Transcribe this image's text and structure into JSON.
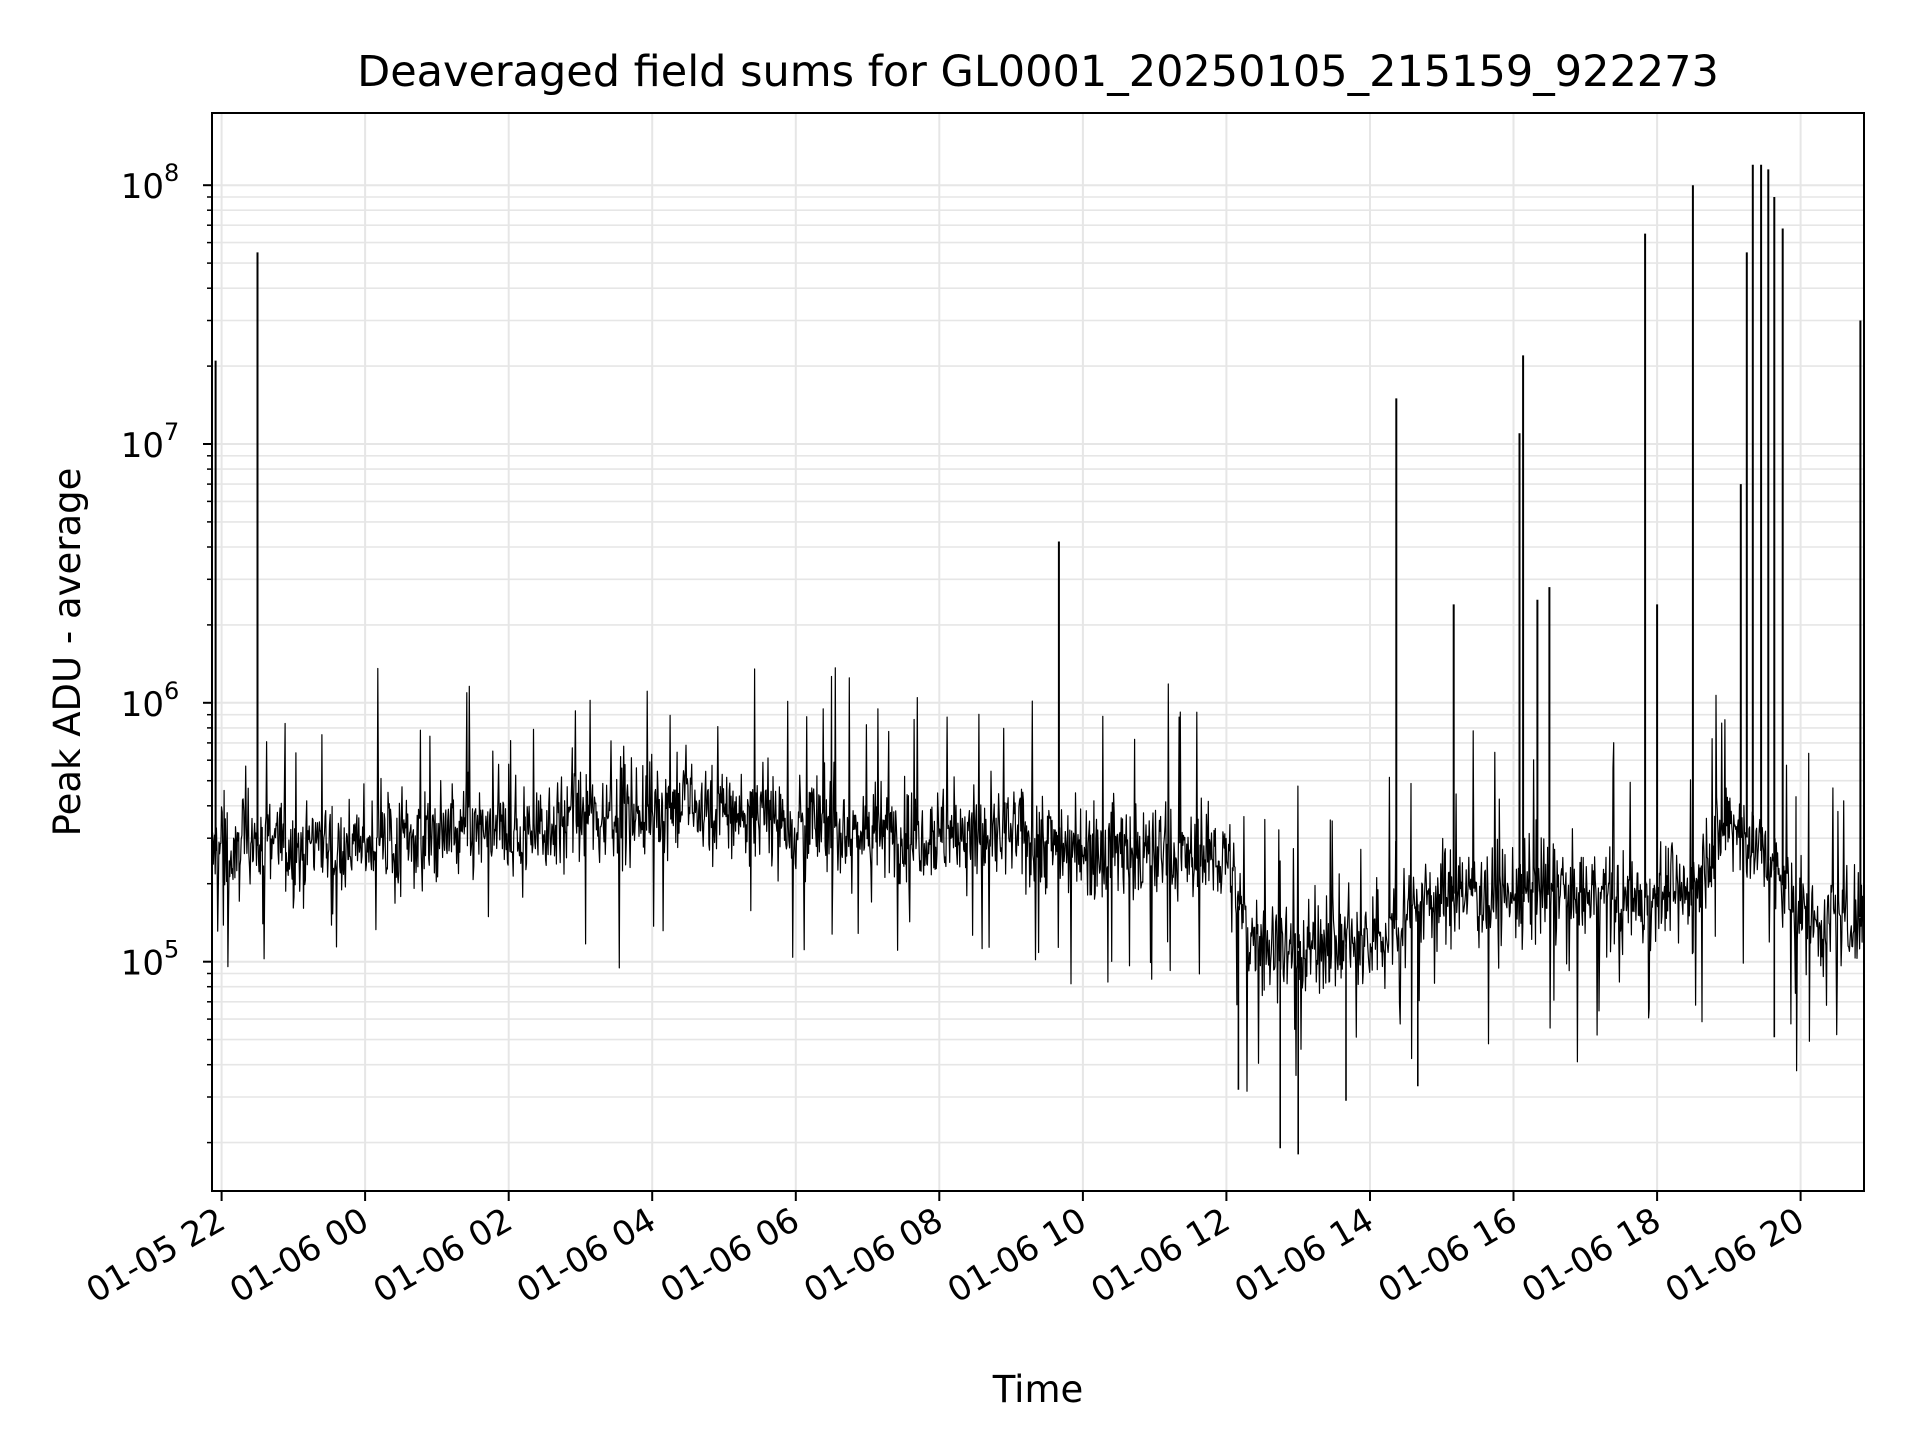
{
  "chart_data": {
    "type": "line",
    "title": "Deaveraged field sums for GL0001_20250105_215159_922273",
    "xlabel": "Time",
    "ylabel": "Peak ADU - average",
    "y_scale": "log",
    "ylim": [
      13000,
      190000000
    ],
    "xlim": [
      "01-05 21:52",
      "01-06 20:53"
    ],
    "grid": {
      "major": true,
      "minor_y": true
    },
    "colors": {
      "line": "#000000",
      "grid": "#e6e6e6",
      "axes": "#000000",
      "background": "#ffffff"
    },
    "x_ticks": [
      {
        "label": "01-05 22",
        "value": "01-05 22:00"
      },
      {
        "label": "01-06 00",
        "value": "01-06 00:00"
      },
      {
        "label": "01-06 02",
        "value": "01-06 02:00"
      },
      {
        "label": "01-06 04",
        "value": "01-06 04:00"
      },
      {
        "label": "01-06 06",
        "value": "01-06 06:00"
      },
      {
        "label": "01-06 08",
        "value": "01-06 08:00"
      },
      {
        "label": "01-06 10",
        "value": "01-06 10:00"
      },
      {
        "label": "01-06 12",
        "value": "01-06 12:00"
      },
      {
        "label": "01-06 14",
        "value": "01-06 14:00"
      },
      {
        "label": "01-06 16",
        "value": "01-06 16:00"
      },
      {
        "label": "01-06 18",
        "value": "01-06 18:00"
      },
      {
        "label": "01-06 20",
        "value": "01-06 20:00"
      }
    ],
    "y_ticks": [
      {
        "base": "10",
        "exp": "5",
        "value": 100000
      },
      {
        "base": "10",
        "exp": "6",
        "value": 1000000
      },
      {
        "base": "10",
        "exp": "7",
        "value": 10000000
      },
      {
        "base": "10",
        "exp": "8",
        "value": 100000000
      }
    ],
    "series": [
      {
        "values": [
          [
            "01-05 21:52",
            250000.0
          ],
          [
            "01-05 22:00",
            300000.0
          ],
          [
            "01-05 22:10",
            220000.0
          ],
          [
            "01-05 22:20",
            350000.0
          ],
          [
            "01-05 22:30",
            280000.0
          ],
          [
            "01-05 22:40",
            320000.0
          ],
          [
            "01-05 23:00",
            260000.0
          ],
          [
            "01-05 23:20",
            310000.0
          ],
          [
            "01-05 23:40",
            270000.0
          ],
          [
            "01-06 00:00",
            290000.0
          ],
          [
            "01-06 00:30",
            300000.0
          ],
          [
            "01-06 01:00",
            310000.0
          ],
          [
            "01-06 01:30",
            320000.0
          ],
          [
            "01-06 02:00",
            300000.0
          ],
          [
            "01-06 02:30",
            340000.0
          ],
          [
            "01-06 03:00",
            360000.0
          ],
          [
            "01-06 03:30",
            380000.0
          ],
          [
            "01-06 04:00",
            390000.0
          ],
          [
            "01-06 04:30",
            400000.0
          ],
          [
            "01-06 05:00",
            380000.0
          ],
          [
            "01-06 05:30",
            360000.0
          ],
          [
            "01-06 06:00",
            350000.0
          ],
          [
            "01-06 06:30",
            330000.0
          ],
          [
            "01-06 07:00",
            320000.0
          ],
          [
            "01-06 07:30",
            310000.0
          ],
          [
            "01-06 08:00",
            320000.0
          ],
          [
            "01-06 08:30",
            300000.0
          ],
          [
            "01-06 09:00",
            310000.0
          ],
          [
            "01-06 09:30",
            290000.0
          ],
          [
            "01-06 10:00",
            280000.0
          ],
          [
            "01-06 10:30",
            270000.0
          ],
          [
            "01-06 11:00",
            260000.0
          ],
          [
            "01-06 11:30",
            250000.0
          ],
          [
            "01-06 12:00",
            260000.0
          ],
          [
            "01-06 12:15",
            130000.0
          ],
          [
            "01-06 12:30",
            120000.0
          ],
          [
            "01-06 13:00",
            110000.0
          ],
          [
            "01-06 13:30",
            120000.0
          ],
          [
            "01-06 14:00",
            110000.0
          ],
          [
            "01-06 14:30",
            160000.0
          ],
          [
            "01-06 15:00",
            180000.0
          ],
          [
            "01-06 15:30",
            190000.0
          ],
          [
            "01-06 16:00",
            180000.0
          ],
          [
            "01-06 16:30",
            190000.0
          ],
          [
            "01-06 17:00",
            180000.0
          ],
          [
            "01-06 17:30",
            170000.0
          ],
          [
            "01-06 18:00",
            180000.0
          ],
          [
            "01-06 18:30",
            190000.0
          ],
          [
            "01-06 19:00",
            350000.0
          ],
          [
            "01-06 19:30",
            260000.0
          ],
          [
            "01-06 20:00",
            150000.0
          ],
          [
            "01-06 20:30",
            140000.0
          ],
          [
            "01-06 20:53",
            150000.0
          ]
        ],
        "spikes": [
          [
            "01-05 21:55",
            21000000.0
          ],
          [
            "01-05 22:30",
            55000000.0
          ],
          [
            "01-06 09:40",
            4200000.0
          ],
          [
            "01-06 14:22",
            15000000.0
          ],
          [
            "01-06 15:10",
            2400000.0
          ],
          [
            "01-06 16:05",
            11000000.0
          ],
          [
            "01-06 16:08",
            22000000.0
          ],
          [
            "01-06 16:20",
            2500000.0
          ],
          [
            "01-06 16:30",
            2800000.0
          ],
          [
            "01-06 17:50",
            65000000.0
          ],
          [
            "01-06 18:00",
            2400000.0
          ],
          [
            "01-06 18:30",
            100000000.0
          ],
          [
            "01-06 19:10",
            7000000.0
          ],
          [
            "01-06 19:15",
            55000000.0
          ],
          [
            "01-06 19:20",
            120000000.0
          ],
          [
            "01-06 19:27",
            120000000.0
          ],
          [
            "01-06 19:33",
            115000000.0
          ],
          [
            "01-06 19:38",
            90000000.0
          ],
          [
            "01-06 19:45",
            68000000.0
          ],
          [
            "01-06 20:50",
            30000000.0
          ]
        ],
        "dips": [
          [
            "01-06 12:10",
            32000.0
          ],
          [
            "01-06 12:45",
            19000.0
          ],
          [
            "01-06 13:00",
            18000.0
          ],
          [
            "01-06 13:40",
            29000.0
          ],
          [
            "01-06 14:40",
            33000.0
          ],
          [
            "01-06 19:38",
            51000.0
          ]
        ]
      }
    ]
  }
}
